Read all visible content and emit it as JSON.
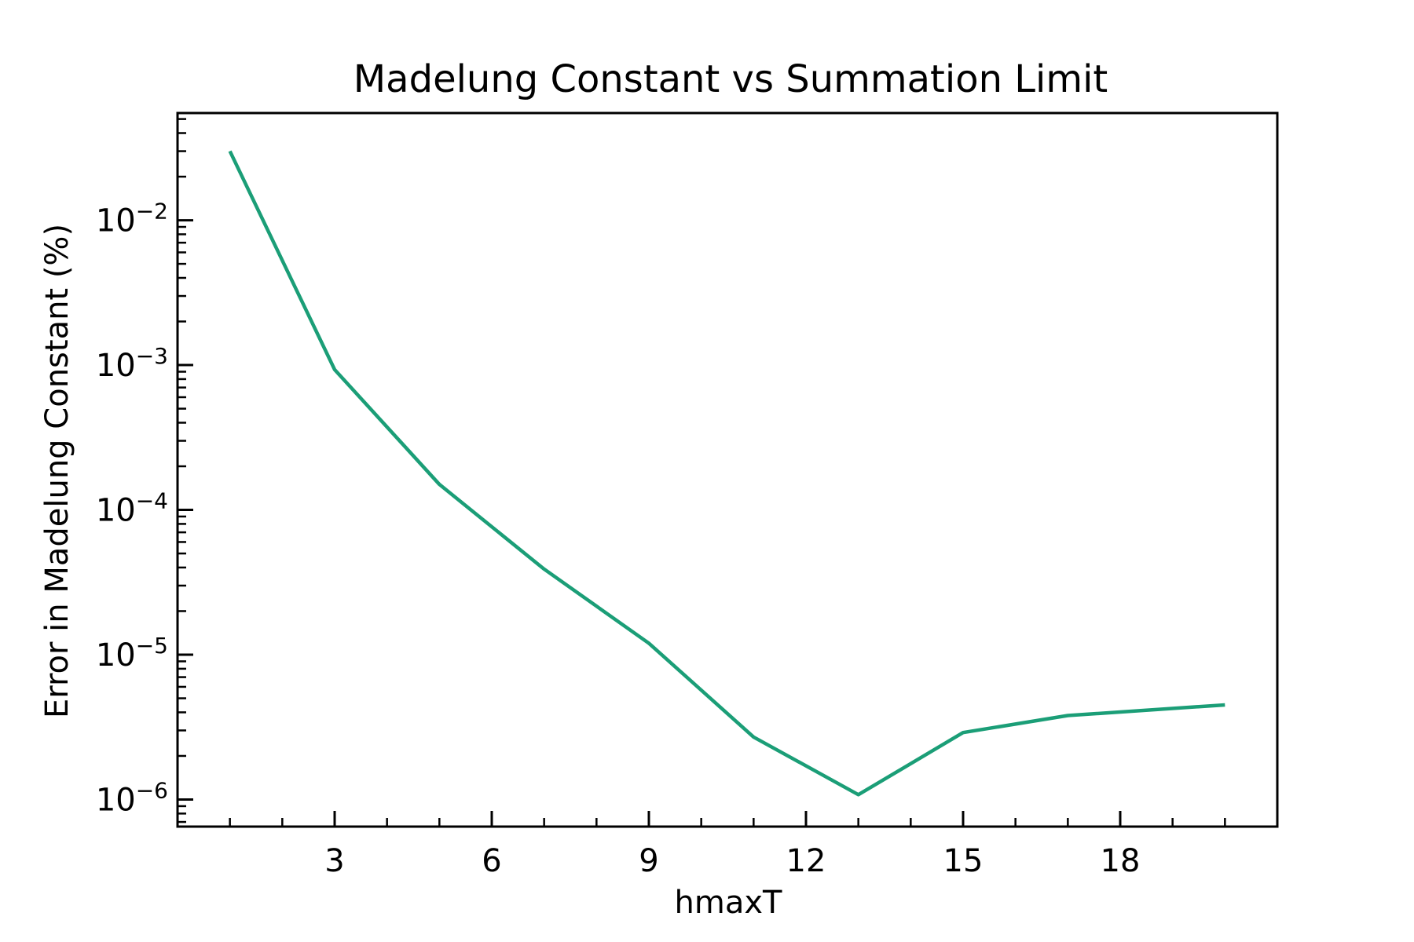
{
  "chart_data": {
    "type": "line",
    "title": "Madelung Constant vs Summation Limit",
    "xlabel": "hmaxT",
    "ylabel": "Error in Madelung Constant (%)",
    "x_scale": "linear",
    "y_scale": "log",
    "xlim": [
      0,
      21
    ],
    "ylim": [
      6.5e-07,
      0.055
    ],
    "x_ticks": [
      3,
      6,
      9,
      12,
      15,
      18
    ],
    "x_tick_labels": [
      "3",
      "6",
      "9",
      "12",
      "15",
      "18"
    ],
    "y_ticks": [
      1e-06,
      1e-05,
      0.0001,
      0.001,
      0.01
    ],
    "y_tick_labels": [
      {
        "base": "10",
        "exp": "−6"
      },
      {
        "base": "10",
        "exp": "−5"
      },
      {
        "base": "10",
        "exp": "−4"
      },
      {
        "base": "10",
        "exp": "−3"
      },
      {
        "base": "10",
        "exp": "−2"
      }
    ],
    "tick_direction": "in",
    "grid": false,
    "legend": "none",
    "series": [
      {
        "color": "#1b9e77",
        "x": [
          1,
          3,
          5,
          7,
          9,
          11,
          13,
          15,
          17,
          20
        ],
        "y": [
          0.03,
          0.00093,
          0.00015,
          3.9e-05,
          1.2e-05,
          2.7e-06,
          1.08e-06,
          2.9e-06,
          3.8e-06,
          4.5e-06
        ]
      }
    ]
  }
}
